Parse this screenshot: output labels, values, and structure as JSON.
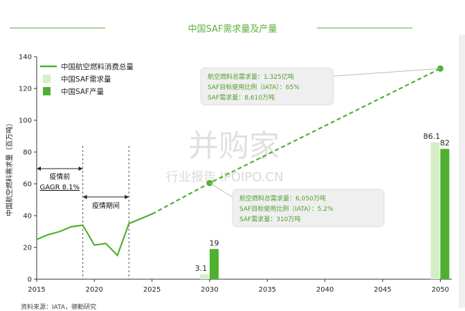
{
  "title": "中国SAF需求量及产量",
  "source": "资料来源：IATA，德勤研究",
  "watermark": {
    "main": "并购家",
    "sub": "行业报告 IPOIPO.CN"
  },
  "chart_data": {
    "type": "line+bar",
    "ylabel": "中国航空燃料需求量（百万吨）",
    "ylim": [
      0,
      140
    ],
    "yticks": [
      0,
      20,
      40,
      60,
      80,
      100,
      120,
      140
    ],
    "xlim": [
      2015,
      2051
    ],
    "xticks": [
      2015,
      2020,
      2025,
      2030,
      2035,
      2040,
      2045,
      2050
    ],
    "legend_position": "top-left",
    "legend": [
      {
        "name": "中国航空燃料消费总量",
        "kind": "line",
        "color": "#4fb02f"
      },
      {
        "name": "中国SAF需求量",
        "kind": "bar",
        "color": "#d4efc6"
      },
      {
        "name": "中国SAF产量",
        "kind": "bar",
        "color": "#4fb02f"
      }
    ],
    "consumption_actual": [
      {
        "x": 2015,
        "y": 25
      },
      {
        "x": 2016,
        "y": 28
      },
      {
        "x": 2017,
        "y": 30
      },
      {
        "x": 2018,
        "y": 33
      },
      {
        "x": 2019,
        "y": 34
      },
      {
        "x": 2020,
        "y": 21.5
      },
      {
        "x": 2021,
        "y": 22.5
      },
      {
        "x": 2022,
        "y": 15
      },
      {
        "x": 2023,
        "y": 35
      },
      {
        "x": 2024,
        "y": 38
      },
      {
        "x": 2025,
        "y": 41
      }
    ],
    "consumption_projection": [
      {
        "x": 2025,
        "y": 41
      },
      {
        "x": 2030,
        "y": 60.5
      },
      {
        "x": 2050,
        "y": 132.5
      }
    ],
    "highlight_points": [
      {
        "x": 2030,
        "y": 60.5
      },
      {
        "x": 2050,
        "y": 132.5
      }
    ],
    "bars": [
      {
        "year": 2030,
        "demand": 3.1,
        "production": 19,
        "demand_label": "3.1",
        "production_label": "19"
      },
      {
        "year": 2050,
        "demand": 86.1,
        "production": 82,
        "demand_label": "86.1",
        "production_label": "82"
      }
    ],
    "vlines": [
      2019,
      2023
    ],
    "periods": [
      {
        "label": "疫情前",
        "sublabel": "GAGR 8.1%",
        "from": 2015,
        "to": 2019
      },
      {
        "label": "疫情期间",
        "from": 2019,
        "to": 2023
      }
    ],
    "annotations": [
      {
        "lines": [
          "航空燃料总需求量：1.325亿吨",
          "SAF目标使用比例（IATA）：65%",
          "SAF需求量：8,610万吨"
        ]
      },
      {
        "lines": [
          "航空燃料总需求量：6,050万吨",
          "SAF目标使用比例（IATA）：5.2%",
          "SAF需求量：310万吨"
        ]
      }
    ]
  }
}
